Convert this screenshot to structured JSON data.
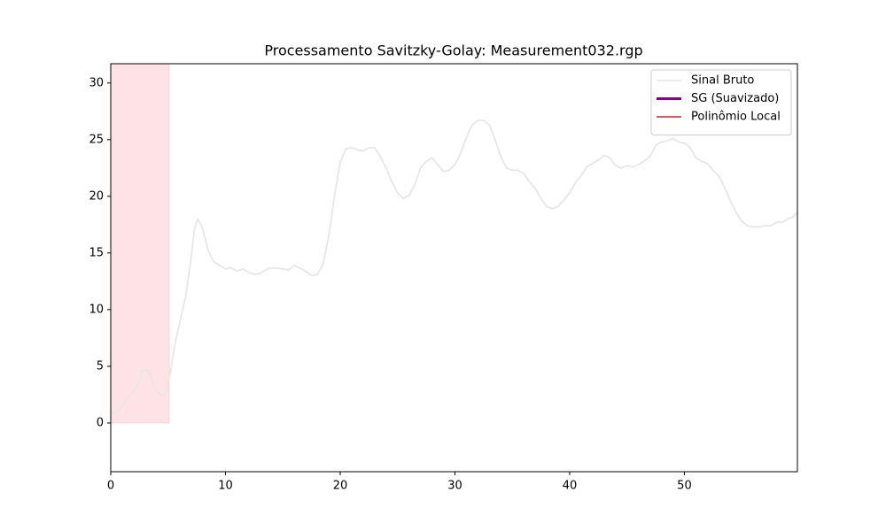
{
  "chart_data": {
    "type": "line",
    "title": "Processamento Savitzky-Golay: Measurement032.rgp",
    "xlim": [
      0,
      59.85
    ],
    "ylim": [
      -4.3,
      31.7
    ],
    "xticks": [
      0,
      10,
      20,
      30,
      40,
      50
    ],
    "yticks": [
      0,
      5,
      10,
      15,
      20,
      25,
      30
    ],
    "legend": "upper right",
    "highlight": {
      "color": "#ffb6c1",
      "x": [
        0,
        5.1
      ],
      "y": [
        0,
        31.7
      ]
    },
    "series": [
      {
        "name": "Sinal Bruto",
        "color": "#e6e6e6",
        "x": [
          0,
          0.5,
          1,
          1.5,
          2,
          2.5,
          2.8,
          3.2,
          3.6,
          4,
          4.4,
          4.8,
          5.2,
          5.6,
          6,
          6.5,
          7,
          7.3,
          7.6,
          8,
          8.5,
          9,
          9.5,
          10,
          10.5,
          11,
          11.5,
          12,
          12.5,
          13,
          13.5,
          14,
          15,
          15.5,
          16,
          17,
          17.5,
          18,
          18.5,
          19,
          19.5,
          20,
          20.5,
          21,
          21.5,
          22,
          22.5,
          23,
          23.5,
          24,
          24.5,
          25,
          25.5,
          26,
          26.5,
          27,
          27.5,
          28,
          28.5,
          29,
          29.5,
          30,
          30.5,
          31,
          31.5,
          32,
          32.5,
          33,
          33.5,
          34,
          34.5,
          35,
          35.5,
          36,
          36.5,
          37,
          37.5,
          38,
          38.5,
          39,
          39.5,
          40,
          40.5,
          41,
          41.5,
          42,
          42.5,
          43,
          43.5,
          44,
          44.5,
          45,
          45.5,
          46,
          46.5,
          47,
          47.5,
          48,
          48.5,
          49,
          49.5,
          50,
          50.5,
          51,
          51.5,
          52,
          52.5,
          53,
          53.5,
          54,
          54.5,
          55,
          55.5,
          56,
          56.5,
          57,
          57.5,
          58,
          58.5,
          59,
          59.5,
          59.85
        ],
        "values": [
          0.8,
          1.0,
          1.5,
          2.3,
          2.8,
          3.6,
          4.7,
          4.7,
          3.8,
          2.8,
          2.4,
          2.6,
          4.5,
          7,
          8.8,
          11,
          14.5,
          17.2,
          18,
          17.2,
          15.2,
          14.2,
          13.9,
          13.6,
          13.7,
          13.4,
          13.6,
          13.3,
          13.1,
          13.2,
          13.5,
          13.7,
          13.6,
          13.5,
          13.9,
          13.4,
          13.0,
          13.1,
          14,
          16.5,
          20,
          23,
          24.2,
          24.3,
          24.1,
          24,
          24.3,
          24.3,
          23.5,
          22.5,
          21.3,
          20.3,
          19.8,
          20.1,
          21,
          22.5,
          23.1,
          23.4,
          22.8,
          22.2,
          22.3,
          22.8,
          23.8,
          25.2,
          26.3,
          26.7,
          26.7,
          26.3,
          25,
          23.5,
          22.5,
          22.3,
          22.3,
          22,
          21.3,
          20.7,
          19.8,
          19.1,
          18.9,
          19.1,
          19.7,
          20.3,
          21.2,
          21.8,
          22.6,
          22.9,
          23.2,
          23.6,
          23.4,
          22.7,
          22.5,
          22.7,
          22.6,
          22.8,
          23.1,
          23.5,
          24.5,
          24.8,
          24.9,
          25.1,
          24.8,
          24.7,
          24.3,
          23.4,
          23.1,
          22.9,
          22.3,
          21.8,
          20.8,
          19.6,
          18.6,
          17.8,
          17.4,
          17.3,
          17.3,
          17.4,
          17.4,
          17.7,
          17.7,
          18,
          18.2,
          18.6
        ]
      },
      {
        "name": "SG (Suavizado)",
        "color": "#8b008b",
        "x": [],
        "values": []
      },
      {
        "name": "Polinômio Local",
        "color": "#e41a1c",
        "x": [],
        "values": []
      }
    ]
  }
}
